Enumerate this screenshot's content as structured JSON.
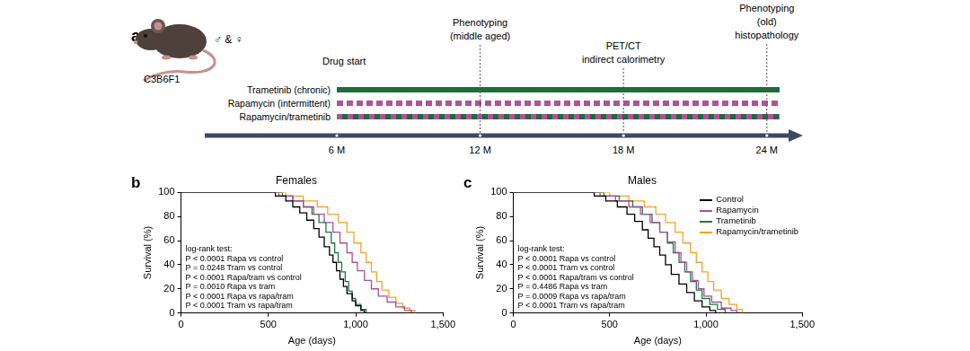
{
  "panel_a": {
    "panel": "a",
    "subject": {
      "strain": "C3B6F1",
      "sexes": "♂ & ♀"
    },
    "drug_start": {
      "month": 6,
      "label": "Drug start"
    },
    "treatments": [
      {
        "name": "Trametinib (chronic)",
        "color": "#1e6b3c",
        "line_style": "solid"
      },
      {
        "name": "Rapamycin (intermittent)",
        "color": "#b0519b",
        "line_style": "dashed"
      },
      {
        "name": "Rapamycin/trametinib",
        "colors": [
          "#1e6b3c",
          "#b0519b"
        ],
        "line_style": "dashed"
      }
    ],
    "events": [
      {
        "month": 12,
        "label": [
          "Phenotyping",
          "(middle aged)"
        ]
      },
      {
        "month": 18,
        "label": [
          "PET/CT",
          "indirect calorimetry"
        ]
      },
      {
        "month": 24,
        "label": [
          "Phenotyping",
          "(old)",
          "histopathology"
        ]
      }
    ],
    "xticks": [
      {
        "value": 6,
        "label": "6 M"
      },
      {
        "value": 12,
        "label": "12 M"
      },
      {
        "value": 18,
        "label": "18 M"
      },
      {
        "value": 24,
        "label": "24 M"
      }
    ]
  },
  "chart_data": [
    {
      "panel": "b",
      "type": "line",
      "title": "Females",
      "x_label": "Age (days)",
      "y_label": "Survival (%)",
      "xlim": [
        0,
        1500
      ],
      "xticks": [
        0,
        500,
        {
          "value": 1000,
          "label": "1,000"
        },
        {
          "value": 1500,
          "label": "1,500"
        }
      ],
      "ylim": [
        0,
        100
      ],
      "yticks": [
        0,
        20,
        40,
        60,
        80,
        100
      ],
      "grid": false,
      "line_style": "step",
      "annotations": [
        "log-rank test:",
        "P < 0.0001  Rapa vs control",
        "P = 0.0248  Tram vs control",
        "P < 0.0001  Rapa/tram vs control",
        "P = 0.0010  Rapa vs tram",
        "P < 0.0001  Rapa vs rapa/tram",
        "P < 0.0001  Tram vs rapa/tram"
      ],
      "series": [
        {
          "name": "Control",
          "color": "#000000",
          "x": [
            0,
            540,
            600,
            640,
            680,
            720,
            760,
            790,
            820,
            850,
            870,
            890,
            910,
            930,
            950,
            980,
            1000,
            1030,
            1050
          ],
          "values": [
            100,
            97,
            93,
            88,
            83,
            77,
            70,
            63,
            55,
            48,
            42,
            35,
            28,
            22,
            16,
            10,
            6,
            2,
            0
          ]
        },
        {
          "name": "Rapamycin",
          "color": "#a8509b",
          "x": [
            0,
            560,
            640,
            700,
            760,
            820,
            870,
            910,
            950,
            980,
            1010,
            1050,
            1090,
            1130,
            1180,
            1230,
            1280,
            1320
          ],
          "values": [
            100,
            97,
            93,
            88,
            82,
            75,
            67,
            58,
            50,
            42,
            35,
            27,
            20,
            14,
            9,
            5,
            2,
            0
          ]
        },
        {
          "name": "Trametinib",
          "color": "#1f7a3c",
          "x": [
            0,
            580,
            640,
            700,
            750,
            790,
            830,
            860,
            880,
            900,
            920,
            940,
            960,
            980,
            1000,
            1030,
            1060
          ],
          "values": [
            100,
            97,
            93,
            88,
            82,
            75,
            67,
            58,
            50,
            42,
            34,
            26,
            18,
            12,
            7,
            3,
            0
          ]
        },
        {
          "name": "Rapamycin/trametinib",
          "color": "#f5a32a",
          "x": [
            0,
            600,
            700,
            780,
            840,
            900,
            950,
            990,
            1030,
            1060,
            1090,
            1120,
            1150,
            1190,
            1230,
            1270,
            1310,
            1340
          ],
          "values": [
            100,
            97,
            93,
            88,
            82,
            75,
            67,
            58,
            50,
            42,
            34,
            26,
            19,
            13,
            8,
            4,
            2,
            0
          ]
        }
      ]
    },
    {
      "panel": "c",
      "type": "line",
      "title": "Males",
      "x_label": "Age (days)",
      "y_label": "Survival (%)",
      "xlim": [
        0,
        1500
      ],
      "xticks": [
        0,
        500,
        {
          "value": 1000,
          "label": "1,000"
        },
        {
          "value": 1500,
          "label": "1,500"
        }
      ],
      "ylim": [
        0,
        100
      ],
      "yticks": [
        0,
        20,
        40,
        60,
        80,
        100
      ],
      "grid": false,
      "line_style": "step",
      "legend": "upper right",
      "annotations": [
        "log-rank test:",
        "P < 0.0001  Rapa vs control",
        "P < 0.0001  Tram vs control",
        "P < 0.0001  Rapa/tram vs control",
        "P = 0.4486  Rapa vs tram",
        "P = 0.0009  Rapa vs rapa/tram",
        "P < 0.0001  Tram vs rapa/tram"
      ],
      "series": [
        {
          "name": "Control",
          "color": "#000000",
          "x": [
            0,
            420,
            480,
            540,
            590,
            630,
            670,
            700,
            730,
            760,
            790,
            820,
            860,
            900,
            940,
            980,
            1020,
            1050
          ],
          "values": [
            100,
            97,
            93,
            88,
            82,
            76,
            69,
            62,
            55,
            48,
            40,
            32,
            24,
            17,
            10,
            5,
            2,
            0
          ]
        },
        {
          "name": "Rapamycin",
          "color": "#a8509b",
          "x": [
            0,
            450,
            530,
            600,
            660,
            710,
            760,
            800,
            840,
            870,
            900,
            930,
            960,
            990,
            1030,
            1080,
            1130,
            1160
          ],
          "values": [
            100,
            97,
            93,
            88,
            82,
            75,
            67,
            59,
            50,
            42,
            34,
            27,
            20,
            14,
            9,
            4,
            2,
            0
          ]
        },
        {
          "name": "Trametinib",
          "color": "#1f7a3c",
          "x": [
            0,
            470,
            550,
            620,
            670,
            720,
            760,
            800,
            830,
            860,
            890,
            920,
            950,
            980,
            1020,
            1060,
            1100
          ],
          "values": [
            100,
            97,
            93,
            88,
            82,
            75,
            67,
            58,
            50,
            42,
            34,
            26,
            19,
            12,
            7,
            3,
            0
          ]
        },
        {
          "name": "Rapamycin/trametinib",
          "color": "#f5a32a",
          "x": [
            0,
            500,
            600,
            680,
            740,
            790,
            840,
            880,
            920,
            950,
            980,
            1010,
            1040,
            1080,
            1120,
            1160,
            1190
          ],
          "values": [
            100,
            97,
            93,
            88,
            82,
            75,
            67,
            58,
            50,
            42,
            34,
            26,
            19,
            12,
            7,
            3,
            0
          ]
        }
      ]
    }
  ]
}
